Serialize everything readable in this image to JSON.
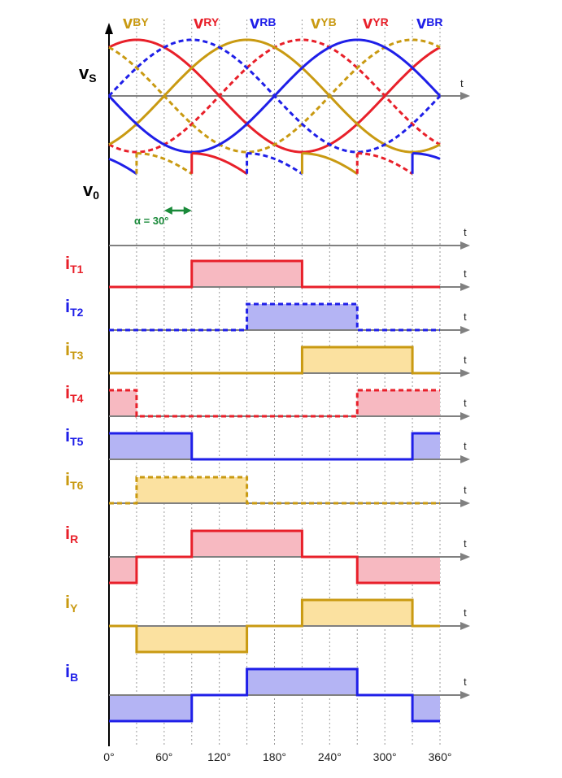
{
  "colors": {
    "red": "#e8202a",
    "blue": "#1f1fe8",
    "yellow": "#c99a12",
    "green": "#1a8a3a"
  },
  "phase_labels": [
    {
      "main": "v",
      "sub": "BY",
      "color": "yellow"
    },
    {
      "main": "v",
      "sub": "RY",
      "color": "red"
    },
    {
      "main": "v",
      "sub": "RB",
      "color": "blue"
    },
    {
      "main": "v",
      "sub": "YB",
      "color": "yellow"
    },
    {
      "main": "v",
      "sub": "YR",
      "color": "red"
    },
    {
      "main": "v",
      "sub": "BR",
      "color": "blue"
    }
  ],
  "vs_label": {
    "main": "v",
    "sub": "S"
  },
  "vo_label": {
    "main": "v",
    "sub": "0"
  },
  "alpha_label": "α = 30°",
  "t_label": "t",
  "x_ticks": [
    "0°",
    "60°",
    "120°",
    "180°",
    "240°",
    "300°",
    "360°"
  ],
  "currents": [
    {
      "main": "i",
      "sub": "T1",
      "color": "red",
      "dashed": false,
      "levels": [
        [
          0,
          0
        ],
        [
          90,
          1
        ],
        [
          210,
          0
        ]
      ]
    },
    {
      "main": "i",
      "sub": "T2",
      "color": "blue",
      "dashed": true,
      "levels": [
        [
          0,
          0
        ],
        [
          150,
          1
        ],
        [
          270,
          0
        ]
      ]
    },
    {
      "main": "i",
      "sub": "T3",
      "color": "yellow",
      "dashed": false,
      "levels": [
        [
          0,
          0
        ],
        [
          210,
          1
        ],
        [
          330,
          0
        ]
      ]
    },
    {
      "main": "i",
      "sub": "T4",
      "color": "red",
      "dashed": true,
      "levels": [
        [
          0,
          1
        ],
        [
          30,
          0
        ],
        [
          270,
          1
        ]
      ]
    },
    {
      "main": "i",
      "sub": "T5",
      "color": "blue",
      "dashed": false,
      "levels": [
        [
          0,
          1
        ],
        [
          90,
          0
        ],
        [
          330,
          1
        ]
      ]
    },
    {
      "main": "i",
      "sub": "T6",
      "color": "yellow",
      "dashed": true,
      "levels": [
        [
          0,
          0
        ],
        [
          30,
          1
        ],
        [
          150,
          0
        ]
      ]
    },
    {
      "main": "i",
      "sub": "R",
      "color": "red",
      "dashed": false,
      "levels": [
        [
          0,
          -1
        ],
        [
          30,
          0
        ],
        [
          90,
          1
        ],
        [
          210,
          0
        ],
        [
          270,
          -1
        ]
      ]
    },
    {
      "main": "i",
      "sub": "Y",
      "color": "yellow",
      "dashed": false,
      "levels": [
        [
          0,
          0
        ],
        [
          30,
          -1
        ],
        [
          150,
          0
        ],
        [
          210,
          1
        ],
        [
          330,
          0
        ]
      ]
    },
    {
      "main": "i",
      "sub": "B",
      "color": "blue",
      "dashed": false,
      "levels": [
        [
          0,
          -1
        ],
        [
          90,
          0
        ],
        [
          150,
          1
        ],
        [
          270,
          0
        ],
        [
          330,
          -1
        ]
      ]
    }
  ]
}
